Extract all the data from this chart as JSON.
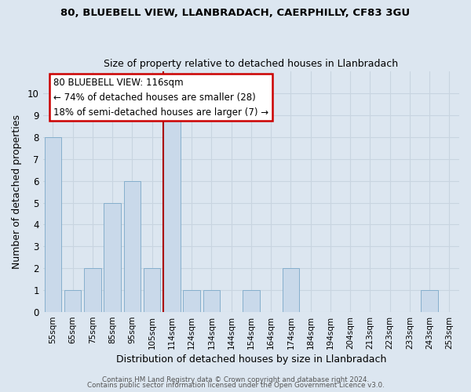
{
  "title1": "80, BLUEBELL VIEW, LLANBRADACH, CAERPHILLY, CF83 3GU",
  "title2": "Size of property relative to detached houses in Llanbradach",
  "xlabel": "Distribution of detached houses by size in Llanbradach",
  "ylabel": "Number of detached properties",
  "bar_labels": [
    "55sqm",
    "65sqm",
    "75sqm",
    "85sqm",
    "95sqm",
    "105sqm",
    "114sqm",
    "124sqm",
    "134sqm",
    "144sqm",
    "154sqm",
    "164sqm",
    "174sqm",
    "184sqm",
    "194sqm",
    "204sqm",
    "213sqm",
    "223sqm",
    "233sqm",
    "243sqm",
    "253sqm"
  ],
  "bar_values": [
    8,
    1,
    2,
    5,
    6,
    2,
    9,
    1,
    1,
    0,
    1,
    0,
    2,
    0,
    0,
    0,
    0,
    0,
    0,
    1,
    0
  ],
  "highlight_index": 6,
  "bar_color": "#c9d9ea",
  "bar_edge_color": "#7aa8c8",
  "highlight_line_color": "#aa0000",
  "annotation_title": "80 BLUEBELL VIEW: 116sqm",
  "annotation_line1": "← 74% of detached houses are smaller (28)",
  "annotation_line2": "18% of semi-detached houses are larger (7) →",
  "annotation_box_edgecolor": "#cc0000",
  "annotation_box_facecolor": "#ffffff",
  "ylim": [
    0,
    11
  ],
  "yticks": [
    0,
    1,
    2,
    3,
    4,
    5,
    6,
    7,
    8,
    9,
    10
  ],
  "footer1": "Contains HM Land Registry data © Crown copyright and database right 2024.",
  "footer2": "Contains public sector information licensed under the Open Government Licence v3.0.",
  "grid_color": "#c8d4e0",
  "background_color": "#dce6f0",
  "fig_bg_color": "#dce6f0"
}
